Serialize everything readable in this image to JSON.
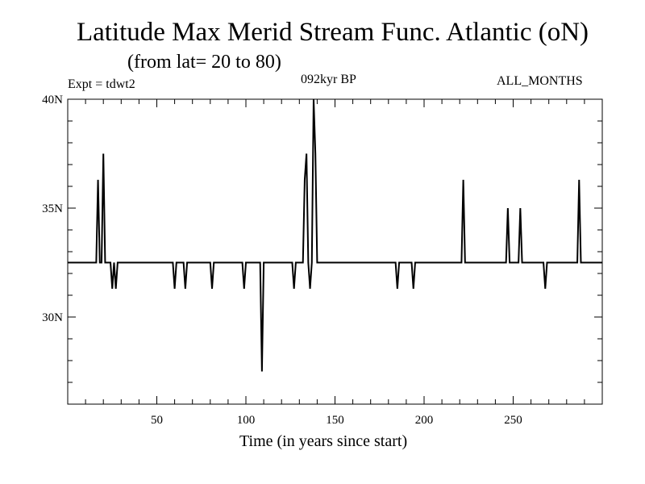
{
  "chart_data": {
    "type": "line",
    "title": "Latitude Max Merid Stream Func. Atlantic (oN)",
    "subtitle": "(from lat= 20 to 80)",
    "annotations": {
      "left": "Expt = tdwt2",
      "center": "092kyr BP",
      "right": "ALL_MONTHS"
    },
    "xlabel": "Time (in years since start)",
    "ylabel": "",
    "xlim": [
      0,
      300
    ],
    "ylim": [
      26,
      40
    ],
    "x_ticks": [
      50,
      100,
      150,
      200,
      250
    ],
    "y_ticks": [
      {
        "value": 30,
        "label": "30N"
      },
      {
        "value": 35,
        "label": "35N"
      },
      {
        "value": 40,
        "label": "40N"
      }
    ],
    "grid": false,
    "series": [
      {
        "line_color": "#000000",
        "x": [
          0,
          16,
          17,
          18,
          19,
          20,
          21,
          22,
          23,
          24,
          25,
          26,
          27,
          28,
          29,
          30,
          31,
          58,
          59,
          60,
          61,
          65,
          66,
          67,
          80,
          81,
          82,
          83,
          98,
          99,
          100,
          101,
          108,
          109,
          110,
          111,
          126,
          127,
          128,
          129,
          132,
          133,
          134,
          135,
          136,
          137,
          138,
          139,
          140,
          141,
          142,
          184,
          185,
          186,
          187,
          193,
          194,
          195,
          196,
          221,
          222,
          223,
          224,
          246,
          247,
          248,
          249,
          253,
          254,
          255,
          256,
          267,
          268,
          269,
          270,
          286,
          287,
          288,
          289,
          300
        ],
        "values": [
          32.5,
          32.5,
          36.3,
          32.5,
          32.5,
          37.5,
          32.5,
          32.5,
          32.5,
          32.5,
          31.3,
          32.5,
          31.3,
          32.5,
          32.5,
          32.5,
          32.5,
          32.5,
          32.5,
          31.3,
          32.5,
          32.5,
          31.3,
          32.5,
          32.5,
          31.3,
          32.5,
          32.5,
          32.5,
          31.3,
          32.5,
          32.5,
          32.5,
          27.5,
          32.5,
          32.5,
          32.5,
          31.3,
          32.5,
          32.5,
          32.5,
          36.3,
          37.5,
          32.5,
          31.3,
          32.5,
          40,
          37.5,
          32.5,
          32.5,
          32.5,
          32.5,
          31.3,
          32.5,
          32.5,
          32.5,
          31.3,
          32.5,
          32.5,
          32.5,
          36.3,
          32.5,
          32.5,
          32.5,
          35,
          32.5,
          32.5,
          32.5,
          35,
          32.5,
          32.5,
          32.5,
          31.3,
          32.5,
          32.5,
          32.5,
          36.3,
          32.5,
          32.5,
          32.5
        ]
      }
    ]
  }
}
